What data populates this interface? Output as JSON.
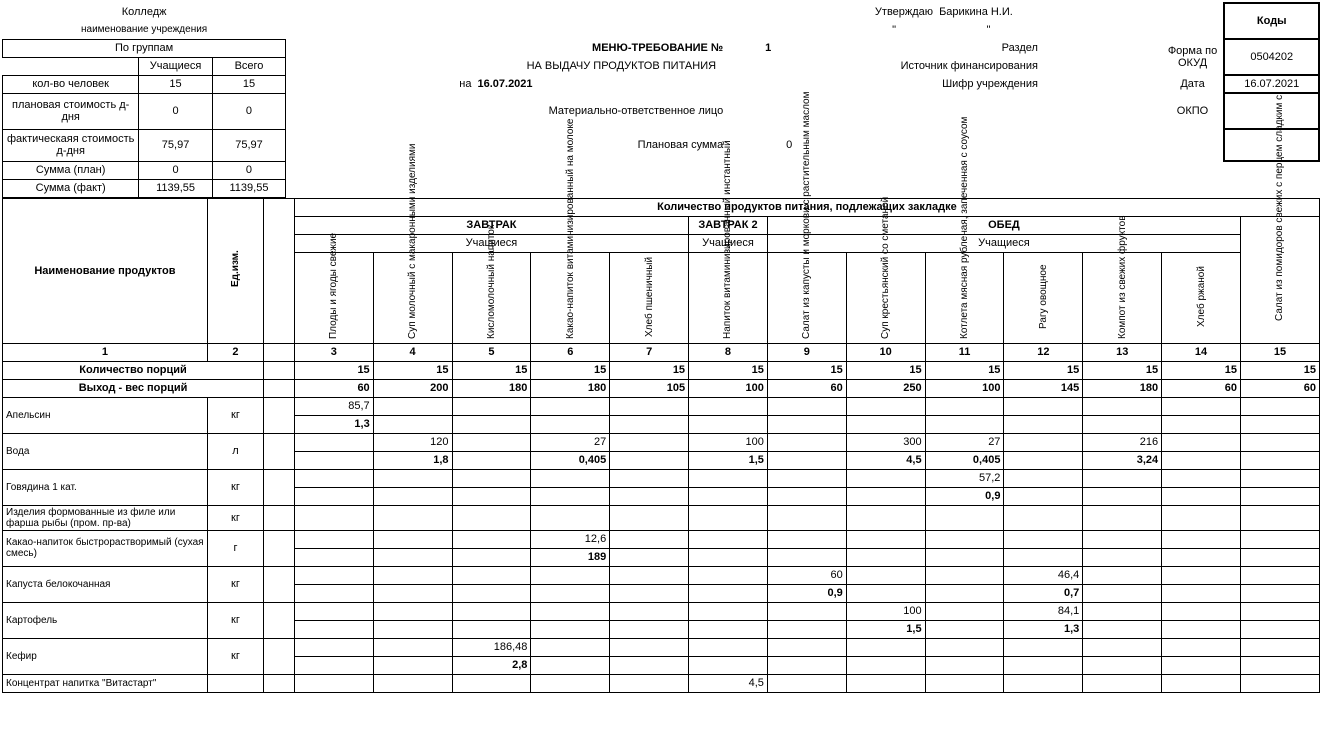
{
  "header": {
    "college": "Колледж",
    "institution_label": "наименование учреждения",
    "by_groups": "По группам",
    "students_col": "Учащиеся",
    "total_col": "Всего",
    "people_count_label": "кол-во человек",
    "people_count_students": "15",
    "people_count_total": "15",
    "plan_cost_label": "плановая стоимость д-дня",
    "plan_cost_students": "0",
    "plan_cost_total": "0",
    "fact_cost_label": "фактическаяя стоимость д-дня",
    "fact_cost_students": "75,97",
    "fact_cost_total": "75,97",
    "sum_plan_label": "Сумма (план)",
    "sum_plan_students": "0",
    "sum_plan_total": "0",
    "sum_fact_label": "Сумма (факт)",
    "sum_fact_students": "1139,55",
    "sum_fact_total": "1139,55",
    "menu_title": "МЕНЮ-ТРЕБОВАНИЕ №",
    "menu_number": "1",
    "issue_label": "НА ВЫДАЧУ ПРОДУКТОВ ПИТАНИЯ",
    "on_label": "на",
    "date": "16.07.2021",
    "responsible_label": "Материально-ответственное лицо",
    "plan_sum_label": "Плановая сумма",
    "plan_sum_value": "0",
    "approve_label": "Утверждаю",
    "approver": "Барикина Н.И.",
    "section_label": "Раздел",
    "funding_label": "Источник  финансирования",
    "code_label": "Шифр учреждения",
    "codes_title": "Коды",
    "form_label": "Форма по ОКУД",
    "form_code": "0504202",
    "date_label": "Дата",
    "date_code": "16.07.2021",
    "okpo_label": "ОКПО"
  },
  "table_header": {
    "products_title": "Наименование продуктов",
    "unit_title": "Ед.изм.",
    "quantity_title": "Количество продуктов питания, подлежащих закладке",
    "breakfast": "ЗАВТРАК",
    "breakfast2": "ЗАВТРАК 2",
    "lunch": "ОБЕД",
    "students": "Учащиеся",
    "portions_label": "Количество порций",
    "weight_label": "Выход - вес порций",
    "col1": "1",
    "col2": "2"
  },
  "dishes": [
    {
      "name": "Плоды и ягоды свежие",
      "num": "3"
    },
    {
      "name": "Суп молочный с макаронными изделиями",
      "num": "4"
    },
    {
      "name": "Кисломолочный напиток",
      "num": "5"
    },
    {
      "name": "Какао-напиток витаминизированный на молоке",
      "num": "6"
    },
    {
      "name": "Хлеб пшеничный",
      "num": "7"
    },
    {
      "name": "Напиток витаминизированный инстантный",
      "num": "8"
    },
    {
      "name": "Салат из капусты и моркови с растительным маслом",
      "num": "9"
    },
    {
      "name": "Суп крестьянский со сметаной",
      "num": "10"
    },
    {
      "name": "Котлета мясная рубленая, запеченная с соусом",
      "num": "11"
    },
    {
      "name": "Рагу овощное",
      "num": "12"
    },
    {
      "name": "Компот из свежих фруктов",
      "num": "13"
    },
    {
      "name": "Хлеб ржаной",
      "num": "14"
    },
    {
      "name": "Салат из помидоров свежих с перцем сладким с",
      "num": "15"
    }
  ],
  "portions": [
    "15",
    "15",
    "15",
    "15",
    "15",
    "15",
    "15",
    "15",
    "15",
    "15",
    "15",
    "15",
    "15"
  ],
  "weights": [
    "60",
    "200",
    "180",
    "180",
    "105",
    "100",
    "60",
    "250",
    "100",
    "145",
    "180",
    "60",
    "60"
  ],
  "products": [
    {
      "name": "Апельсин",
      "unit": "кг",
      "v1": [
        "85,7",
        "",
        "",
        "",
        "",
        "",
        "",
        "",
        "",
        "",
        "",
        "",
        ""
      ],
      "v2": [
        "1,3",
        "",
        "",
        "",
        "",
        "",
        "",
        "",
        "",
        "",
        "",
        "",
        ""
      ]
    },
    {
      "name": "Вода",
      "unit": "л",
      "v1": [
        "",
        "120",
        "",
        "27",
        "",
        "100",
        "",
        "300",
        "27",
        "",
        "216",
        "",
        ""
      ],
      "v2": [
        "",
        "1,8",
        "",
        "0,405",
        "",
        "1,5",
        "",
        "4,5",
        "0,405",
        "",
        "3,24",
        "",
        ""
      ]
    },
    {
      "name": "Говядина 1 кат.",
      "unit": "кг",
      "v1": [
        "",
        "",
        "",
        "",
        "",
        "",
        "",
        "",
        "57,2",
        "",
        "",
        "",
        ""
      ],
      "v2": [
        "",
        "",
        "",
        "",
        "",
        "",
        "",
        "",
        "0,9",
        "",
        "",
        "",
        ""
      ]
    },
    {
      "name": "Изделия формованные из филе или фарша рыбы (пром. пр-ва)",
      "unit": "кг",
      "v1": [
        "",
        "",
        "",
        "",
        "",
        "",
        "",
        "",
        "",
        "",
        "",
        "",
        ""
      ],
      "v2": null
    },
    {
      "name": "Какао-напиток быстрорастворимый (сухая смесь)",
      "unit": "г",
      "v1": [
        "",
        "",
        "",
        "12,6",
        "",
        "",
        "",
        "",
        "",
        "",
        "",
        "",
        ""
      ],
      "v2": [
        "",
        "",
        "",
        "189",
        "",
        "",
        "",
        "",
        "",
        "",
        "",
        "",
        ""
      ]
    },
    {
      "name": "Капуста белокочанная",
      "unit": "кг",
      "v1": [
        "",
        "",
        "",
        "",
        "",
        "",
        "60",
        "",
        "",
        "46,4",
        "",
        "",
        ""
      ],
      "v2": [
        "",
        "",
        "",
        "",
        "",
        "",
        "0,9",
        "",
        "",
        "0,7",
        "",
        "",
        ""
      ]
    },
    {
      "name": "Картофель",
      "unit": "кг",
      "v1": [
        "",
        "",
        "",
        "",
        "",
        "",
        "",
        "100",
        "",
        "84,1",
        "",
        "",
        ""
      ],
      "v2": [
        "",
        "",
        "",
        "",
        "",
        "",
        "",
        "1,5",
        "",
        "1,3",
        "",
        "",
        ""
      ]
    },
    {
      "name": "Кефир",
      "unit": "кг",
      "v1": [
        "",
        "",
        "186,48",
        "",
        "",
        "",
        "",
        "",
        "",
        "",
        "",
        "",
        ""
      ],
      "v2": [
        "",
        "",
        "2,8",
        "",
        "",
        "",
        "",
        "",
        "",
        "",
        "",
        "",
        ""
      ]
    },
    {
      "name": "Концентрат напитка \"Витастарт\"",
      "unit": "",
      "v1": [
        "",
        "",
        "",
        "",
        "",
        "4,5",
        "",
        "",
        "",
        "",
        "",
        "",
        ""
      ],
      "v2": null
    }
  ]
}
